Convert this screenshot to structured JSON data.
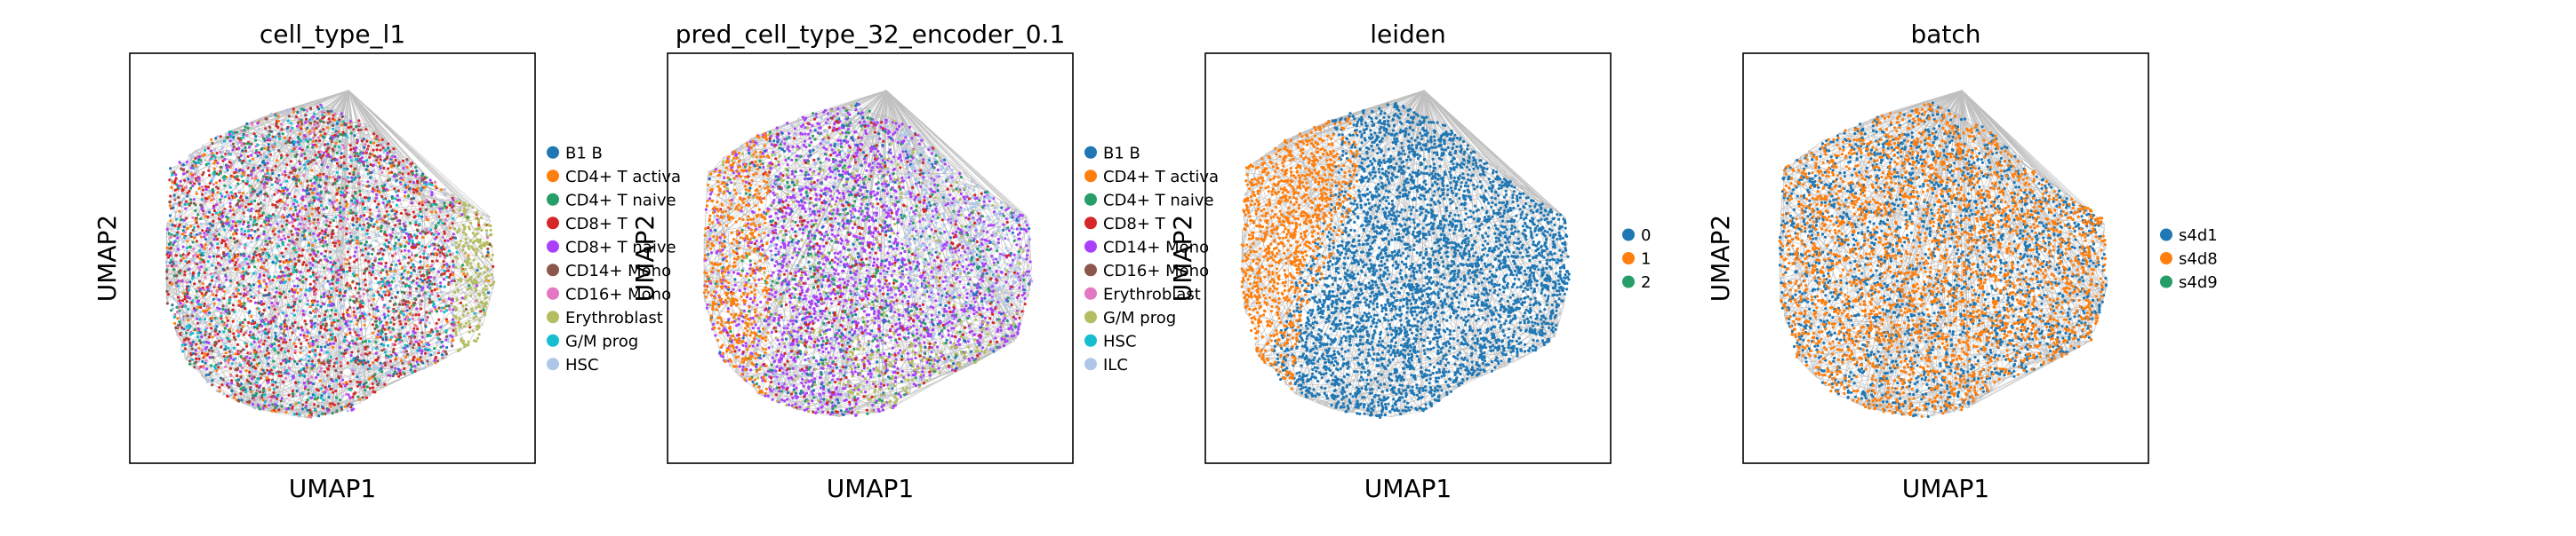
{
  "figure": {
    "panel_count": 4
  },
  "chart_data": [
    {
      "type": "scatter",
      "title": "cell_type_l1",
      "xlabel": "UMAP1",
      "ylabel": "UMAP2",
      "grid": false,
      "legend_placement": "right",
      "legend": [
        {
          "label": "B1 B",
          "color": "#1f77b4"
        },
        {
          "label": "CD4+ T activa",
          "color": "#ff7f0e"
        },
        {
          "label": "CD4+ T naive",
          "color": "#279e68"
        },
        {
          "label": "CD8+ T",
          "color": "#d62728"
        },
        {
          "label": "CD8+ T naive",
          "color": "#aa40fc"
        },
        {
          "label": "CD14+ Mono",
          "color": "#8c564b"
        },
        {
          "label": "CD16+ Mono",
          "color": "#e377c2"
        },
        {
          "label": "Erythroblast",
          "color": "#b5bd61"
        },
        {
          "label": "G/M prog",
          "color": "#17becf"
        },
        {
          "label": "HSC",
          "color": "#aec7e8"
        }
      ]
    },
    {
      "type": "scatter",
      "title": "pred_cell_type_32_encoder_0.1",
      "xlabel": "UMAP1",
      "ylabel": "UMAP2",
      "grid": false,
      "legend_placement": "right",
      "legend": [
        {
          "label": "B1 B",
          "color": "#1f77b4"
        },
        {
          "label": "CD4+ T activa",
          "color": "#ff7f0e"
        },
        {
          "label": "CD4+ T naive",
          "color": "#279e68"
        },
        {
          "label": "CD8+ T",
          "color": "#d62728"
        },
        {
          "label": "CD14+ Mono",
          "color": "#aa40fc"
        },
        {
          "label": "CD16+ Mono",
          "color": "#8c564b"
        },
        {
          "label": "Erythroblast",
          "color": "#e377c2"
        },
        {
          "label": "G/M prog",
          "color": "#b5bd61"
        },
        {
          "label": "HSC",
          "color": "#17becf"
        },
        {
          "label": "ILC",
          "color": "#aec7e8"
        }
      ]
    },
    {
      "type": "scatter",
      "title": "leiden",
      "xlabel": "UMAP1",
      "ylabel": "UMAP2",
      "grid": false,
      "legend_placement": "right",
      "legend": [
        {
          "label": "0",
          "color": "#1f77b4"
        },
        {
          "label": "1",
          "color": "#ff7f0e"
        },
        {
          "label": "2",
          "color": "#279e68"
        }
      ]
    },
    {
      "type": "scatter",
      "title": "batch",
      "xlabel": "UMAP1",
      "ylabel": "UMAP2",
      "grid": false,
      "legend_placement": "right",
      "legend": [
        {
          "label": "s4d1",
          "color": "#1f77b4"
        },
        {
          "label": "s4d8",
          "color": "#ff7f0e"
        },
        {
          "label": "s4d9",
          "color": "#279e68"
        }
      ]
    }
  ]
}
